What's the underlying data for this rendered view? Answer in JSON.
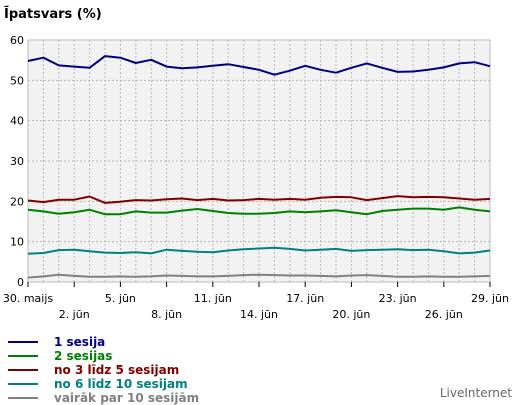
{
  "chart_data": {
    "type": "line",
    "title": "Īpatsvars (%)",
    "ylim": [
      0,
      60
    ],
    "yticks": [
      0,
      10,
      20,
      30,
      40,
      50,
      60
    ],
    "grid": true,
    "x_dates_row1": [
      "30. maijs",
      "5. jūn",
      "11. jūn",
      "17. jūn",
      "23. jūn",
      "29. jūn"
    ],
    "x_dates_row2": [
      "2. jūn",
      "8. jūn",
      "14. jūn",
      "20. jūn",
      "26. jūn"
    ],
    "x_tick_labels_row1_index": [
      0,
      6,
      12,
      18,
      24,
      30
    ],
    "x_tick_labels_row2_index": [
      3,
      9,
      15,
      21,
      27
    ],
    "series": [
      {
        "name": "1 sesija",
        "color": "#000080",
        "values": [
          54.8,
          55.6,
          53.7,
          53.4,
          53.1,
          56.0,
          55.6,
          54.3,
          55.1,
          53.4,
          53.0,
          53.2,
          53.6,
          54.0,
          53.3,
          52.6,
          51.4,
          52.4,
          53.6,
          52.6,
          51.9,
          53.1,
          54.2,
          53.1,
          52.1,
          52.2,
          52.6,
          53.2,
          54.2,
          54.5,
          53.5
        ]
      },
      {
        "name": "2 sesijas",
        "color": "#008000",
        "values": [
          17.9,
          17.5,
          16.9,
          17.3,
          17.9,
          16.8,
          16.8,
          17.5,
          17.2,
          17.2,
          17.7,
          18.1,
          17.6,
          17.1,
          16.9,
          16.9,
          17.1,
          17.5,
          17.3,
          17.5,
          17.8,
          17.3,
          16.8,
          17.6,
          17.9,
          18.2,
          18.2,
          17.9,
          18.5,
          17.9,
          17.5
        ]
      },
      {
        "name": "no 3 līdz 5 sesijam",
        "color": "#800000",
        "values": [
          20.2,
          19.8,
          20.4,
          20.4,
          21.2,
          19.6,
          19.9,
          20.3,
          20.2,
          20.5,
          20.7,
          20.3,
          20.6,
          20.2,
          20.3,
          20.6,
          20.4,
          20.6,
          20.4,
          20.9,
          21.1,
          21.0,
          20.3,
          20.8,
          21.3,
          21.0,
          21.1,
          21.0,
          20.7,
          20.4,
          20.6
        ]
      },
      {
        "name": "no 6 līdz 10 sesijam",
        "color": "#008080",
        "values": [
          7.0,
          7.2,
          7.9,
          8.0,
          7.6,
          7.3,
          7.2,
          7.4,
          7.1,
          8.0,
          7.7,
          7.5,
          7.4,
          7.8,
          8.1,
          8.3,
          8.5,
          8.2,
          7.8,
          8.0,
          8.2,
          7.7,
          7.9,
          8.0,
          8.1,
          7.9,
          8.0,
          7.6,
          7.1,
          7.3,
          7.8
        ]
      },
      {
        "name": "vairāk par 10 sesijām",
        "color": "#808080",
        "values": [
          1.1,
          1.4,
          1.8,
          1.5,
          1.3,
          1.3,
          1.4,
          1.3,
          1.4,
          1.6,
          1.5,
          1.4,
          1.4,
          1.5,
          1.7,
          1.8,
          1.7,
          1.6,
          1.6,
          1.5,
          1.4,
          1.6,
          1.7,
          1.5,
          1.3,
          1.3,
          1.4,
          1.3,
          1.3,
          1.4,
          1.5
        ]
      }
    ]
  },
  "brand": "LiveInternet"
}
